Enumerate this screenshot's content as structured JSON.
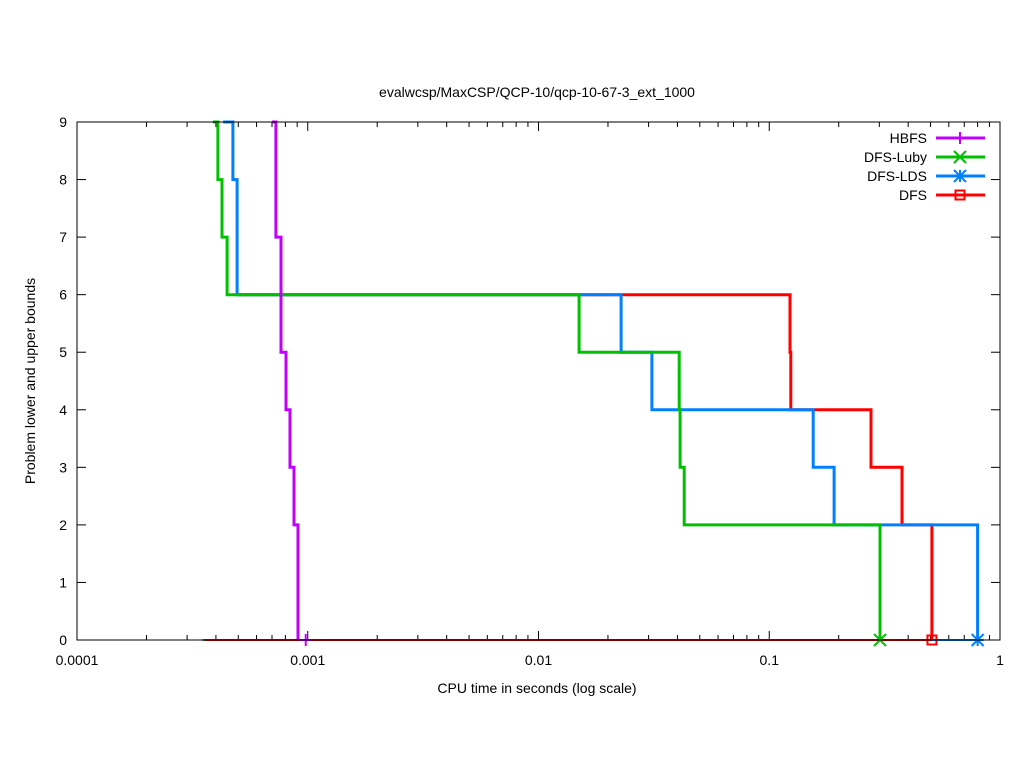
{
  "chart_data": {
    "type": "line",
    "title": "evalwcsp/MaxCSP/QCP-10/qcp-10-67-3_ext_1000",
    "xlabel": "CPU time in seconds (log scale)",
    "ylabel": "Problem lower and upper bounds",
    "xscale": "log",
    "xlim": [
      0.0001,
      1
    ],
    "ylim": [
      0,
      9
    ],
    "xticks": [
      {
        "v": 0.0001,
        "label": "0.0001"
      },
      {
        "v": 0.001,
        "label": "0.001"
      },
      {
        "v": 0.01,
        "label": "0.01"
      },
      {
        "v": 0.1,
        "label": "0.1"
      },
      {
        "v": 1,
        "label": "1"
      }
    ],
    "yticks": [
      {
        "v": 0,
        "label": "0"
      },
      {
        "v": 1,
        "label": "1"
      },
      {
        "v": 2,
        "label": "2"
      },
      {
        "v": 3,
        "label": "3"
      },
      {
        "v": 4,
        "label": "4"
      },
      {
        "v": 5,
        "label": "5"
      },
      {
        "v": 6,
        "label": "6"
      },
      {
        "v": 7,
        "label": "7"
      },
      {
        "v": 8,
        "label": "8"
      },
      {
        "v": 9,
        "label": "9"
      }
    ],
    "legend_position": "top-right",
    "series": [
      {
        "name": "HBFS",
        "color": "#c000ff",
        "marker": "plus",
        "upper": [
          [
            0.0007,
            9
          ],
          [
            0.000728,
            9
          ],
          [
            0.000728,
            7
          ],
          [
            0.000766,
            7
          ],
          [
            0.000766,
            5
          ],
          [
            0.000805,
            5
          ],
          [
            0.000805,
            4
          ],
          [
            0.000838,
            4
          ],
          [
            0.000838,
            3
          ],
          [
            0.000872,
            3
          ],
          [
            0.000872,
            2
          ],
          [
            0.000907,
            2
          ],
          [
            0.000907,
            0
          ]
        ],
        "lower": [
          [
            0.00035,
            0
          ],
          [
            0.00098,
            0
          ]
        ],
        "final": 0.00098
      },
      {
        "name": "DFS-Luby",
        "color": "#00c000",
        "marker": "x",
        "upper": [
          [
            0.000388,
            9
          ],
          [
            0.000408,
            9
          ],
          [
            0.000408,
            8
          ],
          [
            0.000425,
            8
          ],
          [
            0.000425,
            7
          ],
          [
            0.000447,
            7
          ],
          [
            0.000447,
            6
          ],
          [
            0.015,
            6
          ],
          [
            0.015,
            5
          ],
          [
            0.0407,
            5
          ],
          [
            0.0407,
            4
          ],
          [
            0.0411,
            4
          ],
          [
            0.0411,
            3
          ],
          [
            0.0428,
            3
          ],
          [
            0.0428,
            2
          ],
          [
            0.302,
            2
          ],
          [
            0.302,
            0
          ]
        ],
        "lower": [
          [
            0.000352,
            0
          ],
          [
            0.302,
            0
          ]
        ],
        "final": 0.302
      },
      {
        "name": "DFS-LDS",
        "color": "#0080ff",
        "marker": "star",
        "upper": [
          [
            0.00043,
            9
          ],
          [
            0.000474,
            9
          ],
          [
            0.000474,
            8
          ],
          [
            0.000494,
            8
          ],
          [
            0.000494,
            6
          ],
          [
            0.0228,
            6
          ],
          [
            0.0228,
            5
          ],
          [
            0.031,
            5
          ],
          [
            0.031,
            4
          ],
          [
            0.155,
            4
          ],
          [
            0.155,
            3
          ],
          [
            0.191,
            3
          ],
          [
            0.191,
            2
          ],
          [
            0.8,
            2
          ],
          [
            0.8,
            0
          ]
        ],
        "lower": [
          [
            0.00036,
            0
          ],
          [
            0.8,
            0
          ]
        ],
        "final": 0.8
      },
      {
        "name": "DFS",
        "color": "#ff0000",
        "marker": "square",
        "upper": [
          [
            0.0005,
            6
          ],
          [
            0.123,
            6
          ],
          [
            0.123,
            5
          ],
          [
            0.124,
            5
          ],
          [
            0.124,
            4
          ],
          [
            0.276,
            4
          ],
          [
            0.276,
            3
          ],
          [
            0.376,
            3
          ],
          [
            0.376,
            2
          ],
          [
            0.507,
            2
          ],
          [
            0.507,
            0
          ]
        ],
        "lower": [
          [
            0.00036,
            0
          ],
          [
            0.507,
            0
          ]
        ],
        "final": 0.507
      }
    ]
  }
}
